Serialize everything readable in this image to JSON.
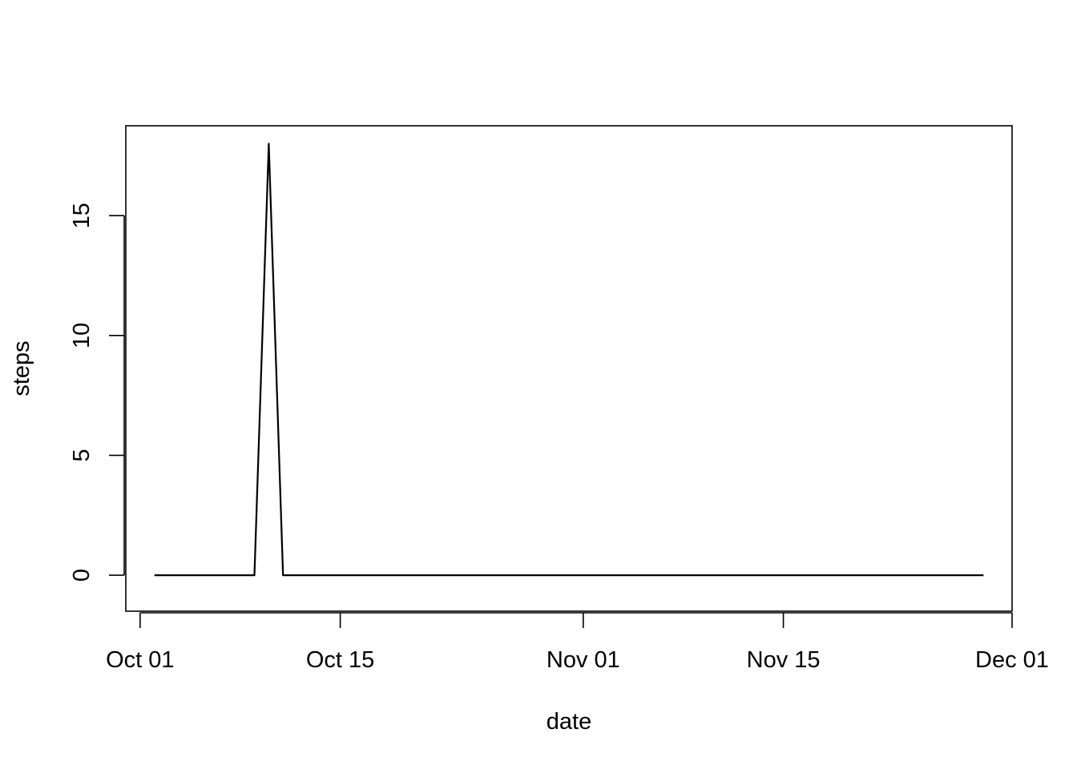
{
  "chart_data": {
    "type": "line",
    "title": "",
    "xlabel": "date",
    "ylabel": "steps",
    "x_type": "date",
    "xlim": [
      "2012-09-30",
      "2012-12-01"
    ],
    "ylim": [
      -1.5,
      18.75
    ],
    "x_ticks": [
      {
        "date": "2012-10-01",
        "label": "Oct 01"
      },
      {
        "date": "2012-10-15",
        "label": "Oct 15"
      },
      {
        "date": "2012-11-01",
        "label": "Nov 01"
      },
      {
        "date": "2012-11-15",
        "label": "Nov 15"
      },
      {
        "date": "2012-12-01",
        "label": "Dec 01"
      }
    ],
    "y_ticks": [
      0,
      5,
      10,
      15
    ],
    "grid": false,
    "legend": "none",
    "line_color": "#000000",
    "series": [
      {
        "x": [
          "2012-10-02",
          "2012-10-09",
          "2012-10-10",
          "2012-10-11",
          "2012-11-29"
        ],
        "y": [
          0,
          0,
          18,
          0,
          0
        ]
      }
    ]
  }
}
